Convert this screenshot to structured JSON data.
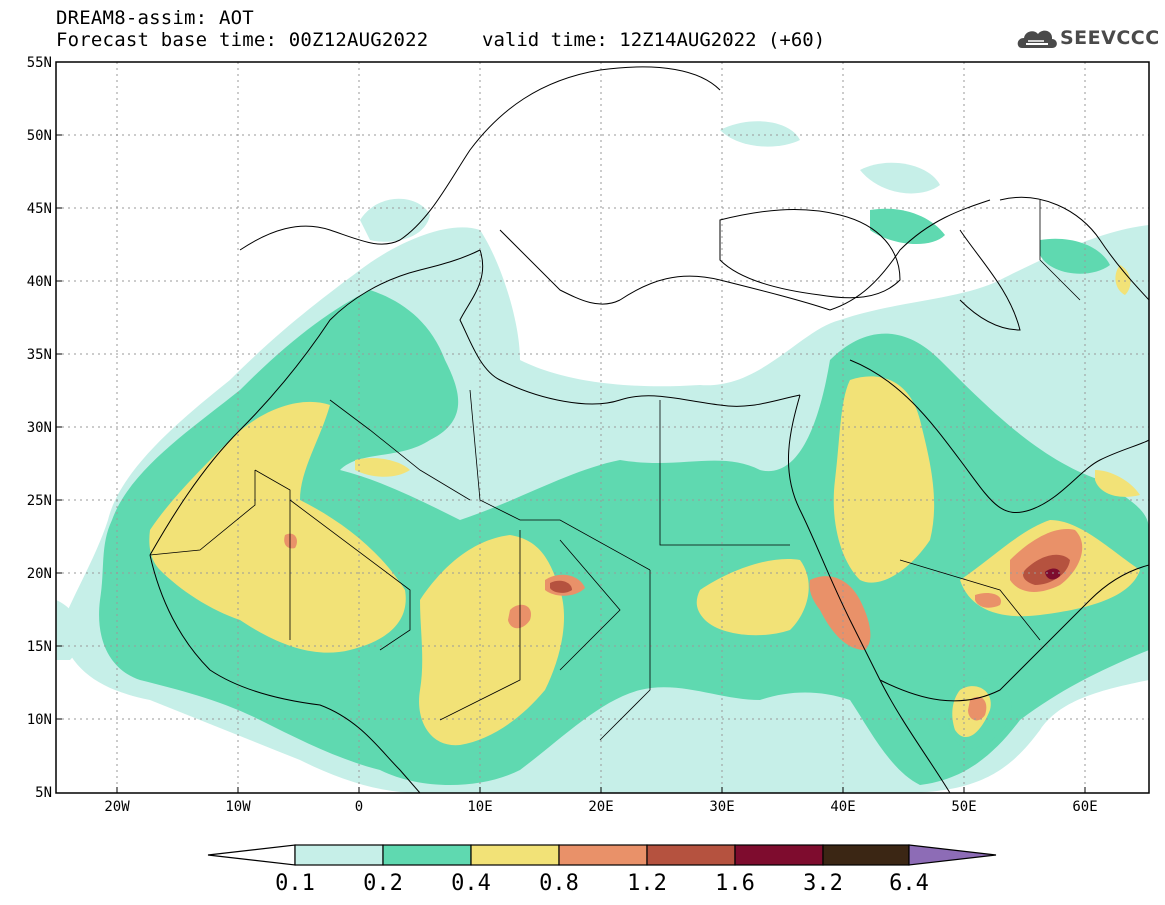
{
  "header": {
    "line1": "DREAM8-assim: AOT",
    "line2": "Forecast base time: 00Z12AUG2022",
    "valid": "valid time: 12Z14AUG2022 (+60)"
  },
  "logo": {
    "text": "SEEVCCC",
    "icon": "cloud-icon"
  },
  "map": {
    "lat_labels": [
      "55N",
      "50N",
      "45N",
      "40N",
      "35N",
      "30N",
      "25N",
      "20N",
      "15N",
      "10N",
      "5N"
    ],
    "lon_labels": [
      "20W",
      "10W",
      "0",
      "10E",
      "20E",
      "30E",
      "40E",
      "50E",
      "60E"
    ],
    "lon_range": [
      -25,
      65
    ],
    "lat_range": [
      5,
      55
    ]
  },
  "colorbar": {
    "levels": [
      "0.1",
      "0.2",
      "0.4",
      "0.8",
      "1.2",
      "1.6",
      "3.2",
      "6.4"
    ],
    "colors": [
      "#ffffff",
      "#c6efe8",
      "#5fd9b0",
      "#f2e277",
      "#e99169",
      "#b5523f",
      "#7e0c2e",
      "#3b2614",
      "#8d6cb6"
    ]
  }
}
